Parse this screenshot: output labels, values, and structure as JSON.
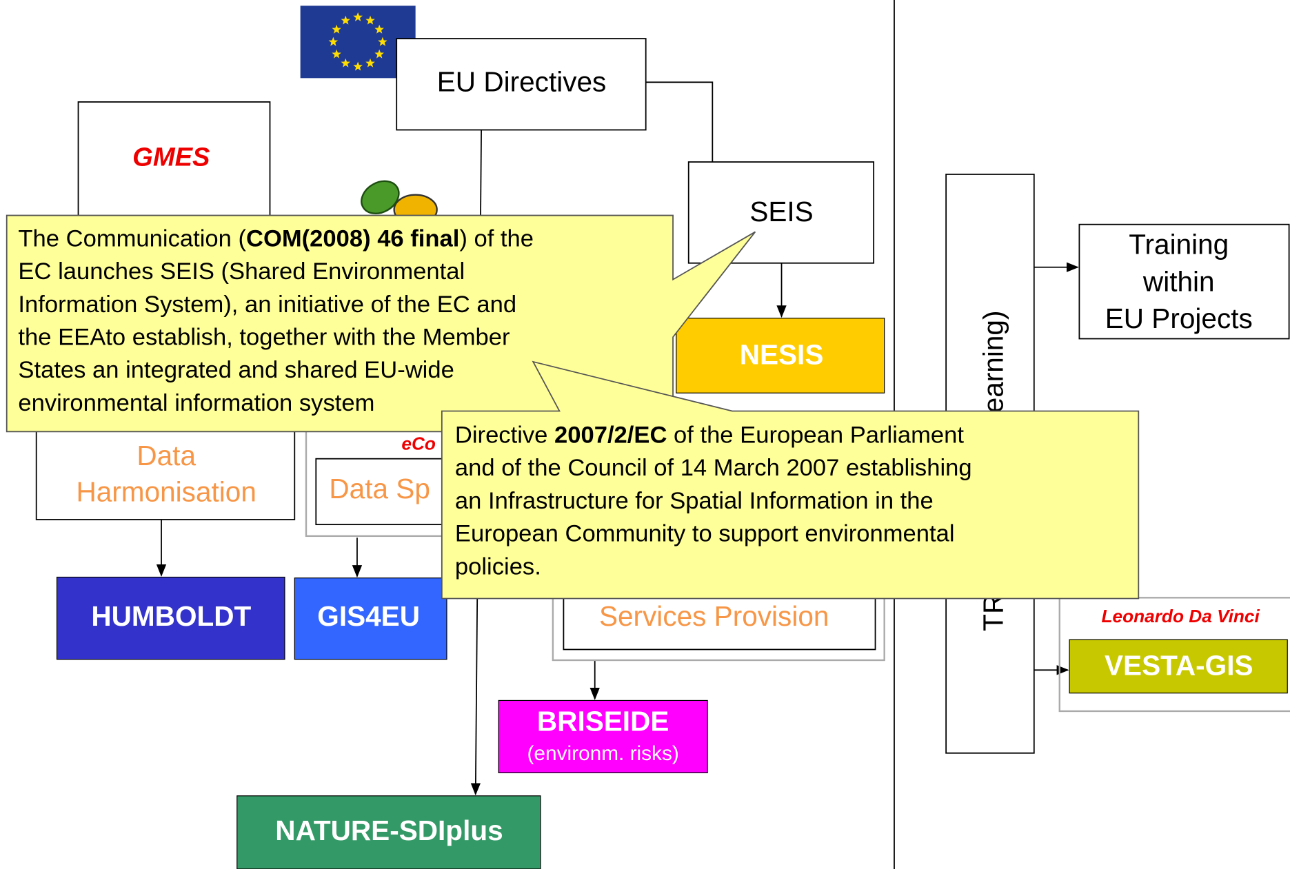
{
  "nodes": {
    "eu_directives": "EU Directives",
    "gmes": "GMES",
    "seis": "SEIS",
    "nesis": "NESIS",
    "training_projects": [
      "Training",
      "within",
      "EU Projects"
    ],
    "training_vertical": [
      "TR",
      "earning)"
    ],
    "data_harmonisation": [
      "Data",
      "Harmonisation"
    ],
    "econtent": "eCo",
    "data_spec": "Data Sp",
    "humboldt": "HUMBOLDT",
    "gis4eu": "GIS4EU",
    "services_provision": "Services Provision",
    "briseide": [
      "BRISEIDE",
      "(environm. risks)"
    ],
    "nature_sdiplus": "NATURE-SDIplus",
    "leonardo": "Leonardo Da Vinci",
    "vesta_gis": "VESTA-GIS"
  },
  "callouts": [
    {
      "lines": [
        [
          "The Communication (",
          "COM(2008) 46 final",
          ") of the"
        ],
        [
          "EC launches SEIS (Shared Environmental"
        ],
        [
          "Information System), an initiative of the EC and"
        ],
        [
          "the EEAto establish, together with the Member"
        ],
        [
          "States an integrated and shared EU-wide"
        ],
        [
          "environmental information system"
        ]
      ]
    },
    {
      "lines": [
        [
          "Directive ",
          "2007/2/EC",
          " of the European Parliament"
        ],
        [
          "and of the Council of 14 March 2007 establishing"
        ],
        [
          "an Infrastructure for Spatial Information in the"
        ],
        [
          "European Community to support environmental"
        ],
        [
          "policies."
        ]
      ]
    }
  ]
}
